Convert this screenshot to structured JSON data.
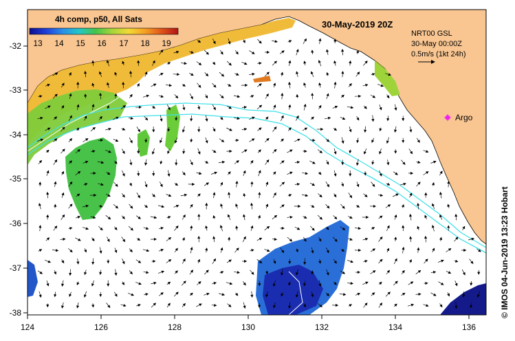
{
  "map": {
    "composite_label": "4h comp, p50, All Sats",
    "date_title": "30-May-2019 20Z",
    "current_product": "NRT00 GSL",
    "current_time": "30-May 00:00Z",
    "vector_scale_label": "0.5m/s (1kt 24h)",
    "argo_label": "Argo",
    "credit": "© IMOS 04-Jun-2019 13:23 Hobart"
  },
  "colorbar": {
    "ticks": [
      "13",
      "14",
      "15",
      "16",
      "17",
      "18",
      "19"
    ],
    "colors": [
      "#0d0d90",
      "#1f3fd8",
      "#2a8ee8",
      "#22c7c8",
      "#45c44a",
      "#a6d63a",
      "#f2d935",
      "#f5a023",
      "#e0541a",
      "#b01515"
    ]
  },
  "axes": {
    "x_ticks": [
      "124",
      "126",
      "128",
      "130",
      "132",
      "134",
      "136"
    ],
    "y_ticks": [
      "-32",
      "-33",
      "-34",
      "-35",
      "-36",
      "-37",
      "-38"
    ]
  },
  "colors": {
    "land": "#f9c692",
    "contour": "#40e0e8",
    "argo": "#ee22ee"
  }
}
